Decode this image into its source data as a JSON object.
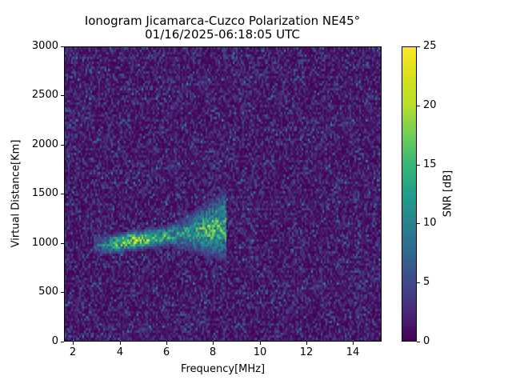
{
  "chart_data": {
    "type": "heatmap",
    "title": "Ionogram Jicamarca-Cuzco Polarization NE45°",
    "subtitle": "01/16/2025-06:18:05 UTC",
    "xlabel": "Frequency[MHz]",
    "ylabel": "Virtual Distance[Km]",
    "xlim": [
      1.6,
      15.2
    ],
    "ylim": [
      0,
      3000
    ],
    "xticks": [
      "2",
      "4",
      "6",
      "8",
      "10",
      "12",
      "14"
    ],
    "yticks": [
      "0",
      "500",
      "1000",
      "1500",
      "2000",
      "2500",
      "3000"
    ],
    "colorbar": {
      "label": "SNR [dB]",
      "range": [
        0,
        25
      ],
      "ticks": [
        "0",
        "5",
        "10",
        "15",
        "20",
        "25"
      ],
      "colormap": "viridis"
    },
    "trace": {
      "description": "Oblique ionospheric echo trace",
      "points": [
        {
          "freq_mhz": 3.0,
          "distance_km": 1000,
          "snr_db": 10
        },
        {
          "freq_mhz": 3.5,
          "distance_km": 1010,
          "snr_db": 16
        },
        {
          "freq_mhz": 4.0,
          "distance_km": 1030,
          "snr_db": 22
        },
        {
          "freq_mhz": 4.5,
          "distance_km": 1050,
          "snr_db": 24
        },
        {
          "freq_mhz": 5.0,
          "distance_km": 1060,
          "snr_db": 23
        },
        {
          "freq_mhz": 5.5,
          "distance_km": 1080,
          "snr_db": 20
        },
        {
          "freq_mhz": 6.0,
          "distance_km": 1100,
          "snr_db": 18
        },
        {
          "freq_mhz": 6.5,
          "distance_km": 1110,
          "snr_db": 15
        },
        {
          "freq_mhz": 7.0,
          "distance_km": 1130,
          "snr_db": 16
        },
        {
          "freq_mhz": 7.5,
          "distance_km": 1150,
          "snr_db": 18
        },
        {
          "freq_mhz": 8.0,
          "distance_km": 1180,
          "snr_db": 20
        },
        {
          "freq_mhz": 8.4,
          "distance_km": 1200,
          "snr_db": 18
        }
      ],
      "max_freq_mhz": 8.5,
      "upper_spread_km": 1380
    },
    "background_noise_snr_db": [
      0,
      6
    ]
  },
  "labels": {
    "title": "Ionogram Jicamarca-Cuzco Polarization NE45°",
    "subtitle": "01/16/2025-06:18:05 UTC",
    "xlabel": "Frequency[MHz]",
    "ylabel": "Virtual Distance[Km]",
    "clabel": "SNR [dB]",
    "x": [
      "2",
      "4",
      "6",
      "8",
      "10",
      "12",
      "14"
    ],
    "y": [
      "0",
      "500",
      "1000",
      "1500",
      "2000",
      "2500",
      "3000"
    ],
    "c": [
      "0",
      "5",
      "10",
      "15",
      "20",
      "25"
    ]
  }
}
